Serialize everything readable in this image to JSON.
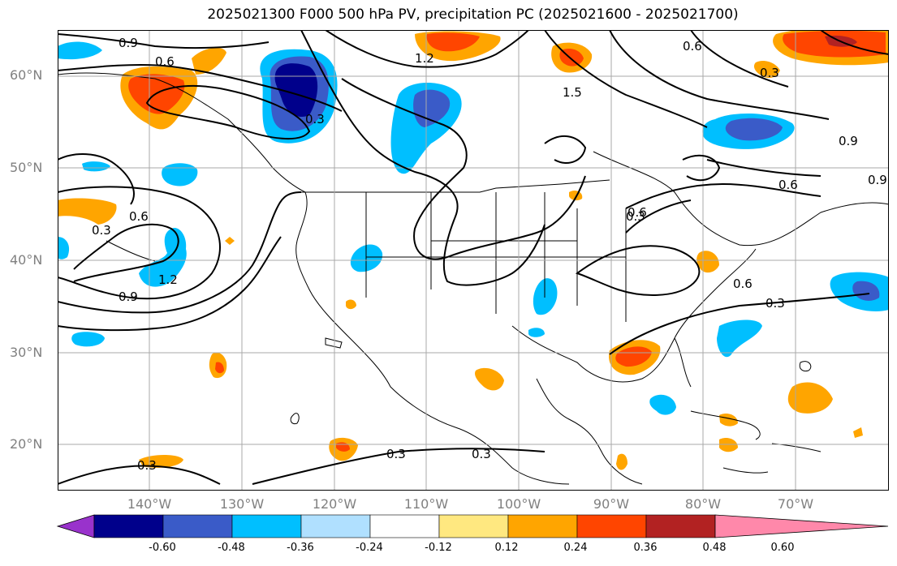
{
  "title": "2025021300 F000 500 hPa PV, precipitation PC (2025021600 - 2025021700)",
  "lat_labels": [
    "60°N",
    "50°N",
    "40°N",
    "30°N",
    "20°N"
  ],
  "lon_labels": [
    "140°W",
    "130°W",
    "120°W",
    "110°W",
    "100°W",
    "90°W",
    "80°W",
    "70°W"
  ],
  "contour_labels": [
    "0.9",
    "0.6",
    "1.2",
    "1.5",
    "0.6",
    "0.3",
    "0.3",
    "0.9",
    "0.9",
    "0.6",
    "0.3",
    "0.6",
    "1.2",
    "0.9",
    "0.6",
    "0.3",
    "0.3",
    "0.3",
    "0.3",
    "0.3",
    "0.6"
  ],
  "colorbar": {
    "ticks": [
      "-0.60",
      "-0.48",
      "-0.36",
      "-0.24",
      "-0.12",
      "0.12",
      "0.24",
      "0.36",
      "0.48",
      "0.60"
    ],
    "colors": [
      "#9932cc",
      "#00008b",
      "#3a5bc8",
      "#00bfff",
      "#b0e0ff",
      "#ffffff",
      "#ffe880",
      "#ffa500",
      "#ff4500",
      "#b22222",
      "#ff88aa"
    ]
  },
  "map": {
    "extent_lon": [
      -151,
      -61
    ],
    "extent_lat": [
      15,
      65
    ],
    "gridlines": true
  }
}
